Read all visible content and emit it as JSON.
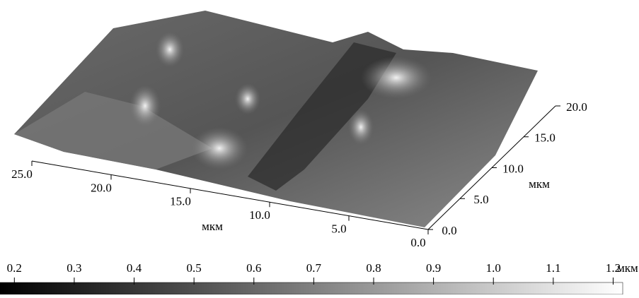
{
  "chart_data": {
    "type": "surface",
    "x_label": "мкм",
    "y_label": "мкм",
    "colorbar_unit": "мкм",
    "xlim": [
      0,
      25
    ],
    "xticks": [
      {
        "value": 25,
        "label": "25.0"
      },
      {
        "value": 20,
        "label": "20.0"
      },
      {
        "value": 15,
        "label": "15.0"
      },
      {
        "value": 10,
        "label": "10.0"
      },
      {
        "value": 5,
        "label": "5.0"
      },
      {
        "value": 0,
        "label": "0.0"
      }
    ],
    "ylim": [
      0,
      20
    ],
    "yticks": [
      {
        "value": 0,
        "label": "0.0"
      },
      {
        "value": 5,
        "label": "5.0"
      },
      {
        "value": 10,
        "label": "10.0"
      },
      {
        "value": 15,
        "label": "15.0"
      },
      {
        "value": 20,
        "label": "20.0"
      }
    ],
    "clim": [
      0.176,
      1.216
    ],
    "cticks": [
      0.2,
      0.3,
      0.4,
      0.5,
      0.6,
      0.7,
      0.8,
      0.9,
      {
        "value": 1,
        "label": "1.0"
      },
      1.1,
      1.2
    ]
  }
}
